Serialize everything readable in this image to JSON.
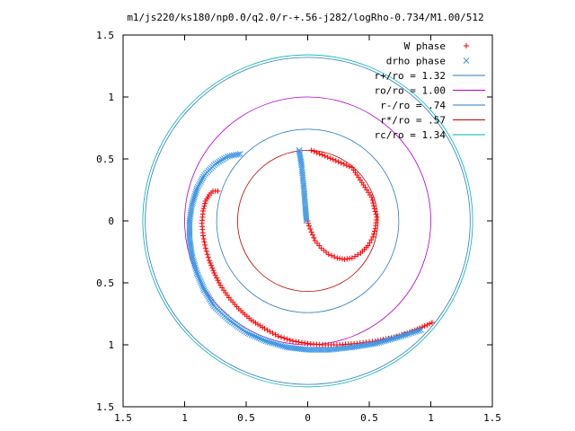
{
  "chart_data": {
    "type": "scatter",
    "title": "m1/js220/ks180/np0.0/q2.0/r-+.56-j282/logRho-0.734/M1.00/512",
    "xlabel": "",
    "ylabel": "",
    "xlim": [
      -1.5,
      1.5
    ],
    "ylim": [
      -1.5,
      1.5
    ],
    "x_ticks": [
      -1.5,
      -1,
      -0.5,
      0,
      0.5,
      1,
      1.5
    ],
    "y_ticks": [
      -1.5,
      -1,
      -0.5,
      0,
      0.5,
      1,
      1.5
    ],
    "x_tick_labels": [
      "1.5",
      "1",
      "0.5",
      "0",
      "0.5",
      "1",
      "1.5"
    ],
    "y_tick_labels": [
      "1.5",
      "1",
      "0.5",
      "0",
      "0.5",
      "1",
      "1.5"
    ],
    "grid": false,
    "legend_position": "top-right",
    "circles": [
      {
        "name": "r+/ro = 1.32",
        "radius": 1.32,
        "color": "#2a7bbf"
      },
      {
        "name": "ro/ro = 1.00",
        "radius": 1.0,
        "color": "#b000c8"
      },
      {
        "name": "r-/ro = .74",
        "radius": 0.74,
        "color": "#2a7bbf"
      },
      {
        "name": "r*/ro = .57",
        "radius": 0.57,
        "color": "#c00000"
      },
      {
        "name": "rc/ro = 1.34",
        "radius": 1.34,
        "color": "#00b0b0"
      }
    ],
    "series": [
      {
        "name": "W phase",
        "marker": "plus",
        "color": "#ff0000",
        "points": [
          [
            0.03,
            0.57
          ],
          [
            0.36,
            0.43
          ],
          [
            0.52,
            0.19
          ],
          [
            0.56,
            0.03
          ],
          [
            0.55,
            -0.06
          ],
          [
            0.53,
            -0.13
          ],
          [
            0.49,
            -0.2
          ],
          [
            0.43,
            -0.26
          ],
          [
            0.36,
            -0.3
          ],
          [
            0.3,
            -0.31
          ],
          [
            0.24,
            -0.3
          ],
          [
            0.17,
            -0.27
          ],
          [
            0.11,
            -0.22
          ],
          [
            0.06,
            -0.16
          ],
          [
            0.03,
            -0.09
          ],
          [
            0.01,
            -0.04
          ],
          [
            0.0,
            0.0
          ],
          [
            -0.73,
            0.24
          ],
          [
            -0.77,
            0.24
          ],
          [
            -0.8,
            0.21
          ],
          [
            -0.83,
            0.16
          ],
          [
            -0.85,
            0.08
          ],
          [
            -0.86,
            -0.02
          ],
          [
            -0.85,
            -0.12
          ],
          [
            -0.83,
            -0.22
          ],
          [
            -0.8,
            -0.32
          ],
          [
            -0.76,
            -0.42
          ],
          [
            -0.71,
            -0.52
          ],
          [
            -0.64,
            -0.62
          ],
          [
            -0.56,
            -0.71
          ],
          [
            -0.46,
            -0.8
          ],
          [
            -0.35,
            -0.87
          ],
          [
            -0.24,
            -0.93
          ],
          [
            -0.12,
            -0.97
          ],
          [
            0.0,
            -0.99
          ],
          [
            0.12,
            -1.0
          ],
          [
            0.26,
            -1.0
          ],
          [
            0.4,
            -0.99
          ],
          [
            0.55,
            -0.97
          ],
          [
            0.7,
            -0.94
          ],
          [
            0.85,
            -0.89
          ],
          [
            0.97,
            -0.84
          ],
          [
            1.01,
            -0.82
          ]
        ]
      },
      {
        "name": "drho phase",
        "marker": "cross",
        "color": "#3c96e6",
        "points": [
          [
            -0.07,
            0.57
          ],
          [
            -0.05,
            0.45
          ],
          [
            -0.04,
            0.35
          ],
          [
            -0.03,
            0.25
          ],
          [
            -0.02,
            0.12
          ],
          [
            -0.01,
            0.0
          ],
          [
            -0.55,
            0.54
          ],
          [
            -0.65,
            0.52
          ],
          [
            -0.75,
            0.46
          ],
          [
            -0.84,
            0.37
          ],
          [
            -0.9,
            0.26
          ],
          [
            -0.94,
            0.13
          ],
          [
            -0.96,
            0.0
          ],
          [
            -0.96,
            -0.14
          ],
          [
            -0.94,
            -0.28
          ],
          [
            -0.9,
            -0.42
          ],
          [
            -0.84,
            -0.56
          ],
          [
            -0.76,
            -0.69
          ],
          [
            -0.64,
            -0.8
          ],
          [
            -0.5,
            -0.9
          ],
          [
            -0.34,
            -0.97
          ],
          [
            -0.17,
            -1.02
          ],
          [
            0.0,
            -1.04
          ],
          [
            0.18,
            -1.04
          ],
          [
            0.36,
            -1.02
          ],
          [
            0.55,
            -0.99
          ],
          [
            0.73,
            -0.94
          ],
          [
            0.86,
            -0.9
          ],
          [
            0.92,
            -0.88
          ]
        ]
      }
    ]
  }
}
